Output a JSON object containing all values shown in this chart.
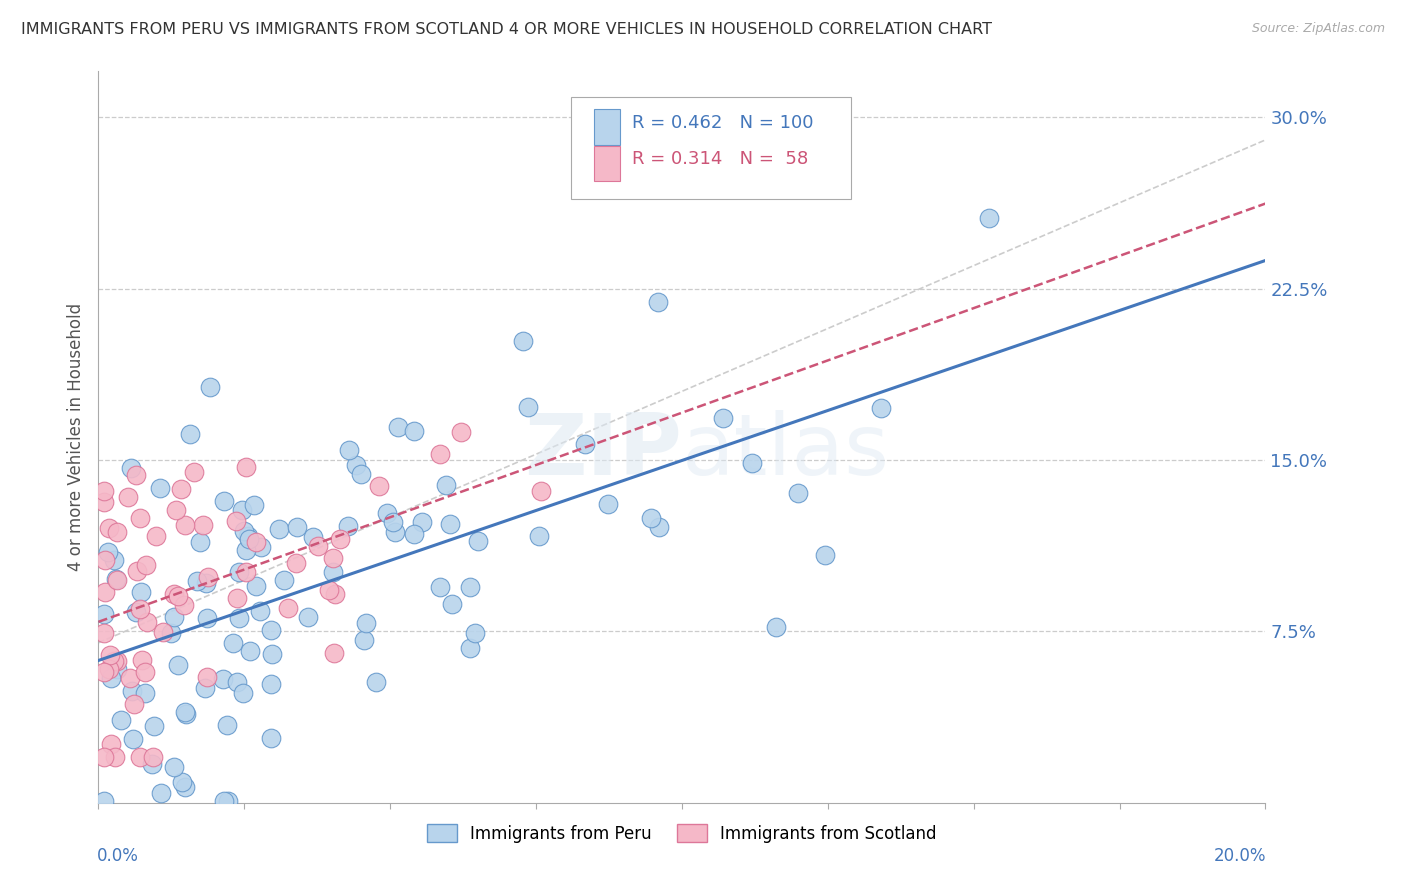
{
  "title": "IMMIGRANTS FROM PERU VS IMMIGRANTS FROM SCOTLAND 4 OR MORE VEHICLES IN HOUSEHOLD CORRELATION CHART",
  "source": "Source: ZipAtlas.com",
  "ylabel": "4 or more Vehicles in Household",
  "y_tick_vals": [
    0.075,
    0.15,
    0.225,
    0.3
  ],
  "y_tick_labels": [
    "7.5%",
    "15.0%",
    "22.5%",
    "30.0%"
  ],
  "xlim": [
    0.0,
    0.2
  ],
  "ylim": [
    0.0,
    0.32
  ],
  "peru_R": 0.462,
  "peru_N": 100,
  "scotland_R": 0.314,
  "scotland_N": 58,
  "peru_color": "#b8d4ec",
  "scotland_color": "#f5b8c8",
  "peru_edge_color": "#6699cc",
  "scotland_edge_color": "#dd7799",
  "peru_line_color": "#4477bb",
  "scotland_line_color": "#cc5577",
  "trend_line_color": "#cccccc",
  "background_color": "#ffffff",
  "grid_color": "#cccccc",
  "label_color": "#4477bb",
  "ylabel_color": "#555555",
  "title_color": "#333333",
  "source_color": "#aaaaaa"
}
